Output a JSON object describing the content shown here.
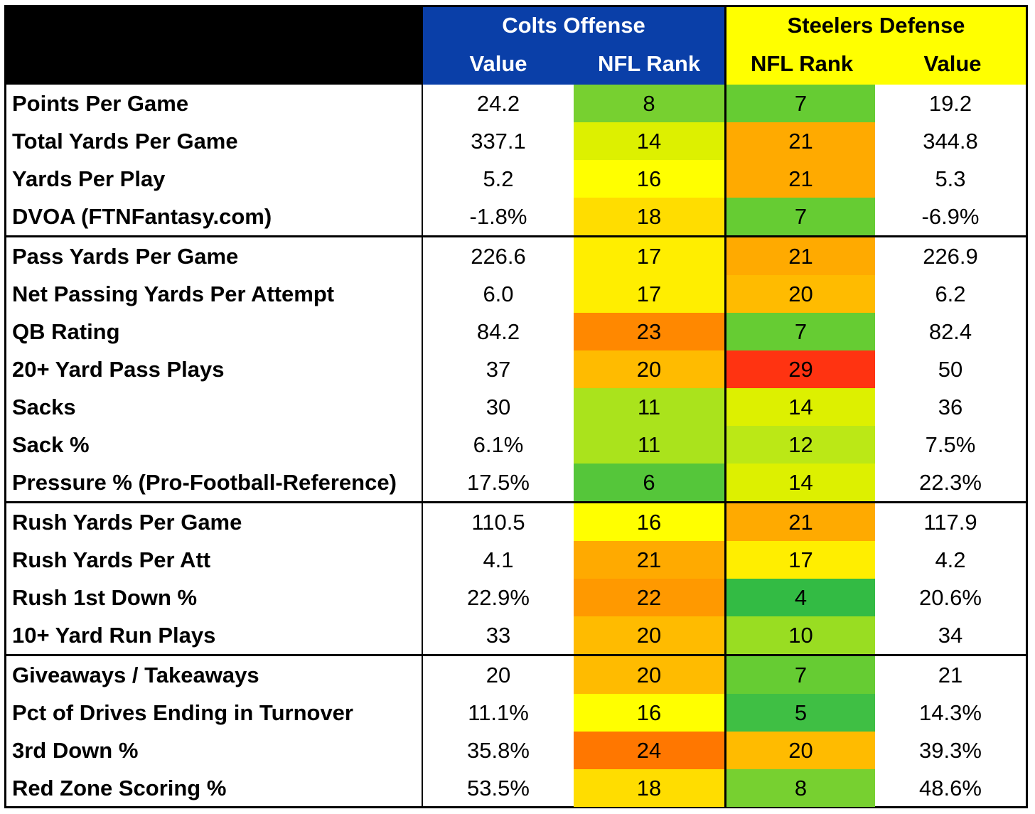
{
  "chart_data": {
    "type": "table",
    "title": "",
    "groups": [
      {
        "name": "Colts Offense",
        "columns": [
          "Value",
          "NFL Rank"
        ]
      },
      {
        "name": "Steelers Defense",
        "columns": [
          "NFL Rank",
          "Value"
        ]
      }
    ],
    "rows": [
      {
        "label": "Points Per Game",
        "colts_value": "24.2",
        "colts_rank": 8,
        "steelers_rank": 7,
        "steelers_value": "19.2",
        "section_start": false
      },
      {
        "label": "Total Yards Per Game",
        "colts_value": "337.1",
        "colts_rank": 14,
        "steelers_rank": 21,
        "steelers_value": "344.8",
        "section_start": false
      },
      {
        "label": "Yards Per Play",
        "colts_value": "5.2",
        "colts_rank": 16,
        "steelers_rank": 21,
        "steelers_value": "5.3",
        "section_start": false
      },
      {
        "label": "DVOA (FTNFantasy.com)",
        "colts_value": "-1.8%",
        "colts_rank": 18,
        "steelers_rank": 7,
        "steelers_value": "-6.9%",
        "section_start": false
      },
      {
        "label": "Pass Yards Per Game",
        "colts_value": "226.6",
        "colts_rank": 17,
        "steelers_rank": 21,
        "steelers_value": "226.9",
        "section_start": true
      },
      {
        "label": "Net Passing Yards Per Attempt",
        "colts_value": "6.0",
        "colts_rank": 17,
        "steelers_rank": 20,
        "steelers_value": "6.2",
        "section_start": false
      },
      {
        "label": "QB Rating",
        "colts_value": "84.2",
        "colts_rank": 23,
        "steelers_rank": 7,
        "steelers_value": "82.4",
        "section_start": false
      },
      {
        "label": "20+ Yard Pass Plays",
        "colts_value": "37",
        "colts_rank": 20,
        "steelers_rank": 29,
        "steelers_value": "50",
        "section_start": false
      },
      {
        "label": "Sacks",
        "colts_value": "30",
        "colts_rank": 11,
        "steelers_rank": 14,
        "steelers_value": "36",
        "section_start": false
      },
      {
        "label": "Sack %",
        "colts_value": "6.1%",
        "colts_rank": 11,
        "steelers_rank": 12,
        "steelers_value": "7.5%",
        "section_start": false
      },
      {
        "label": "Pressure % (Pro-Football-Reference)",
        "colts_value": "17.5%",
        "colts_rank": 6,
        "steelers_rank": 14,
        "steelers_value": "22.3%",
        "section_start": false
      },
      {
        "label": "Rush Yards Per Game",
        "colts_value": "110.5",
        "colts_rank": 16,
        "steelers_rank": 21,
        "steelers_value": "117.9",
        "section_start": true
      },
      {
        "label": "Rush Yards Per Att",
        "colts_value": "4.1",
        "colts_rank": 21,
        "steelers_rank": 17,
        "steelers_value": "4.2",
        "section_start": false
      },
      {
        "label": "Rush 1st Down %",
        "colts_value": "22.9%",
        "colts_rank": 22,
        "steelers_rank": 4,
        "steelers_value": "20.6%",
        "section_start": false
      },
      {
        "label": "10+ Yard Run Plays",
        "colts_value": "33",
        "colts_rank": 20,
        "steelers_rank": 10,
        "steelers_value": "34",
        "section_start": false
      },
      {
        "label": "Giveaways / Takeaways",
        "colts_value": "20",
        "colts_rank": 20,
        "steelers_rank": 7,
        "steelers_value": "21",
        "section_start": true
      },
      {
        "label": "Pct of Drives Ending in Turnover",
        "colts_value": "11.1%",
        "colts_rank": 16,
        "steelers_rank": 5,
        "steelers_value": "14.3%",
        "section_start": false
      },
      {
        "label": "3rd Down %",
        "colts_value": "35.8%",
        "colts_rank": 24,
        "steelers_rank": 20,
        "steelers_value": "39.3%",
        "section_start": false
      },
      {
        "label": "Red Zone Scoring %",
        "colts_value": "53.5%",
        "colts_rank": 18,
        "steelers_rank": 8,
        "steelers_value": "48.6%",
        "section_start": false
      }
    ],
    "rank_color_scale": {
      "4": "#33bb44",
      "5": "#3fbf44",
      "6": "#55c63a",
      "7": "#66cc33",
      "8": "#77d030",
      "10": "#99dd22",
      "11": "#aae31c",
      "12": "#bbe816",
      "14": "#ddf000",
      "16": "#ffff00",
      "17": "#ffee00",
      "18": "#ffdd00",
      "20": "#ffbb00",
      "21": "#ffaa00",
      "22": "#ff9900",
      "23": "#ff8800",
      "24": "#ff7700",
      "29": "#ff3311"
    },
    "colors": {
      "colts_header": "#0a3fa8",
      "steelers_header": "#ffff00",
      "label_header": "#000000"
    }
  }
}
